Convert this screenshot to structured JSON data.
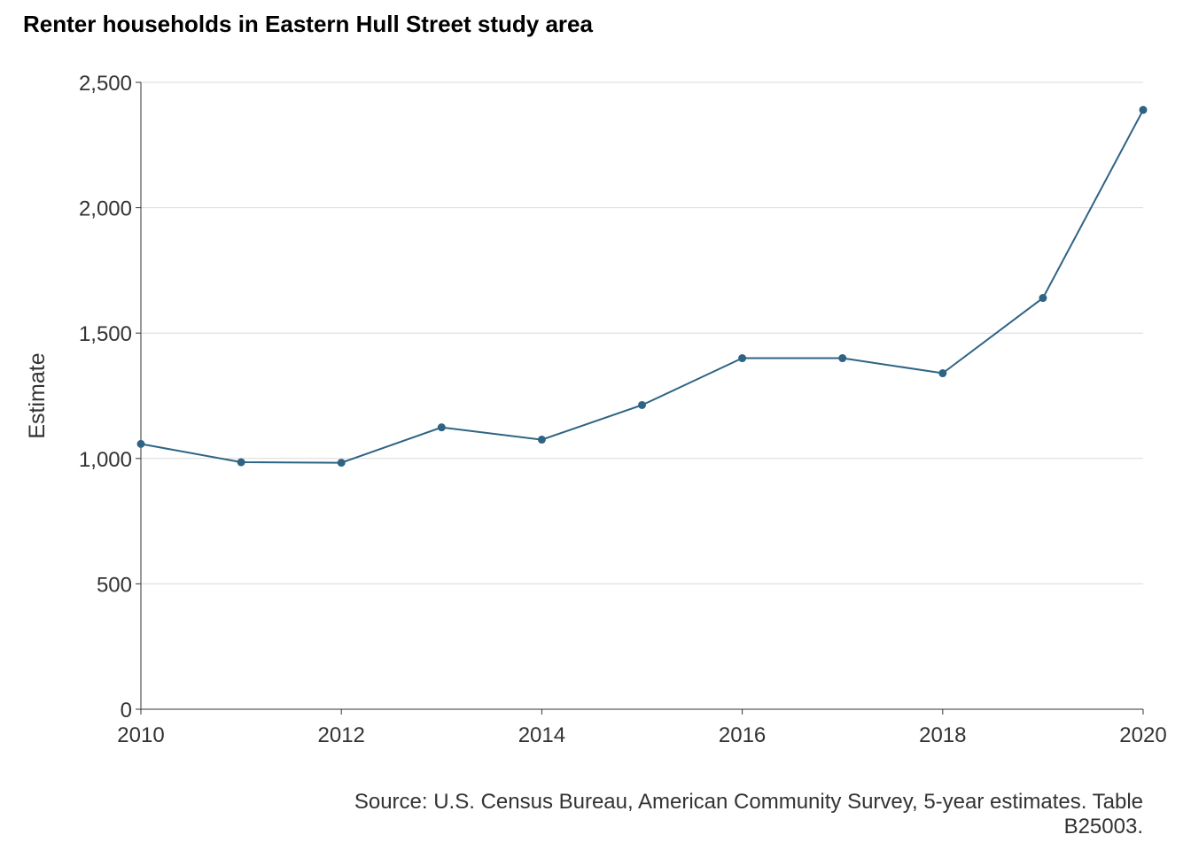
{
  "chart_data": {
    "type": "line",
    "title": "Renter households in Eastern Hull Street study area",
    "xlabel": "",
    "ylabel": "Estimate",
    "x_ticks": [
      "2010",
      "2012",
      "2014",
      "2016",
      "2018",
      "2020"
    ],
    "y_ticks": [
      "0",
      "500",
      "1,000",
      "1,500",
      "2,000",
      "2,500"
    ],
    "xlim": [
      2010,
      2020
    ],
    "ylim": [
      0,
      2500
    ],
    "grid": "horizontal",
    "series": [
      {
        "color": "#2e6384",
        "x": [
          2010,
          2011,
          2012,
          2013,
          2014,
          2015,
          2016,
          2017,
          2018,
          2019,
          2020
        ],
        "values": [
          1058,
          985,
          983,
          1124,
          1075,
          1213,
          1400,
          1400,
          1340,
          1640,
          2390
        ]
      }
    ],
    "caption_line1": "Source: U.S. Census Bureau, American Community Survey, 5-year estimates. Table",
    "caption_line2": "B25003."
  }
}
